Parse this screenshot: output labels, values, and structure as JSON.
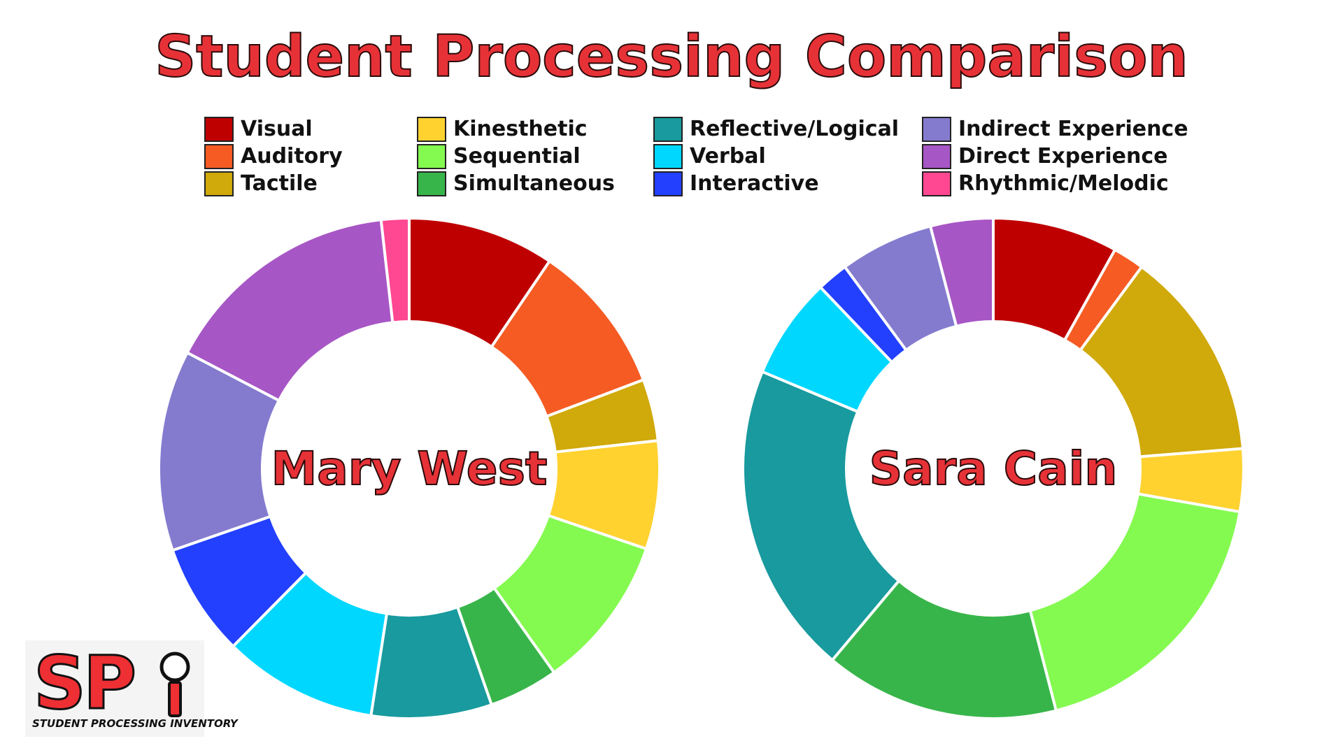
{
  "title": "Student Processing Comparison",
  "legend": [
    {
      "label": "Visual",
      "color": "#be0000"
    },
    {
      "label": "Auditory",
      "color": "#f55b23"
    },
    {
      "label": "Tactile",
      "color": "#d0a90a"
    },
    {
      "label": "Kinesthetic",
      "color": "#ffd230"
    },
    {
      "label": "Sequential",
      "color": "#84fa50"
    },
    {
      "label": "Simultaneous",
      "color": "#38b54a"
    },
    {
      "label": "Reflective/Logical",
      "color": "#189a9e"
    },
    {
      "label": "Verbal",
      "color": "#00d7ff"
    },
    {
      "label": "Interactive",
      "color": "#2340ff"
    },
    {
      "label": "Indirect Experience",
      "color": "#847bcf"
    },
    {
      "label": "Direct Experience",
      "color": "#a756c5"
    },
    {
      "label": "Rhythmic/Melodic",
      "color": "#ff4792"
    }
  ],
  "chart_data": [
    {
      "type": "pie",
      "style": "donut",
      "title": "",
      "center_label": "Mary West",
      "categories": [
        "Visual",
        "Auditory",
        "Tactile",
        "Kinesthetic",
        "Sequential",
        "Simultaneous",
        "Reflective/Logical",
        "Verbal",
        "Interactive",
        "Indirect Experience",
        "Direct Experience",
        "Rhythmic/Melodic"
      ],
      "values": [
        9.5,
        9.8,
        4.0,
        7.0,
        10.0,
        4.5,
        7.8,
        10.0,
        7.3,
        13.0,
        15.6,
        1.8
      ],
      "unit": "percent (estimated)"
    },
    {
      "type": "pie",
      "style": "donut",
      "title": "",
      "center_label": "Sara Cain",
      "categories": [
        "Visual",
        "Auditory",
        "Tactile",
        "Kinesthetic",
        "Sequential",
        "Simultaneous",
        "Reflective/Logical",
        "Verbal",
        "Interactive",
        "Indirect Experience",
        "Direct Experience",
        "Rhythmic/Melodic"
      ],
      "values": [
        8.0,
        2.0,
        13.5,
        4.0,
        18.0,
        15.0,
        20.0,
        6.5,
        2.0,
        6.0,
        4.0,
        0
      ],
      "unit": "percent (estimated)"
    }
  ],
  "logo": {
    "letters": "SP",
    "tagline": "STUDENT PROCESSING INVENTORY"
  }
}
